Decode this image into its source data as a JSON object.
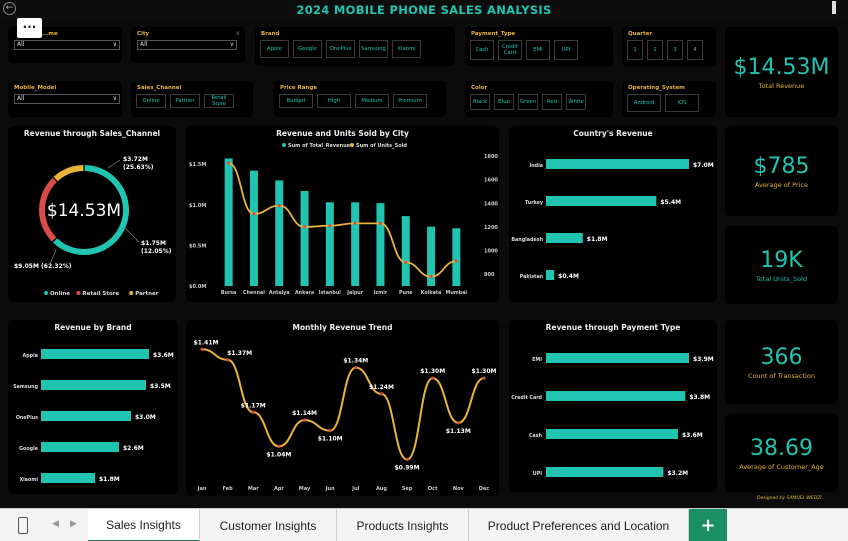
{
  "header": {
    "title": "2024 MOBILE PHONE SALES ANALYSIS",
    "back_icon": "back-arrow-icon",
    "more_label": "..."
  },
  "colors": {
    "teal": "#21c4b0",
    "gold": "#e9b43a",
    "red": "#d94a4a",
    "bg": "#000000"
  },
  "slicers": {
    "name": {
      "label": "...me",
      "value": "All"
    },
    "city": {
      "label": "City",
      "value": "All"
    },
    "brand": {
      "label": "Brand",
      "options": [
        "Apple",
        "Google",
        "OnePlus",
        "Samsung",
        "Xiaomi"
      ]
    },
    "payment": {
      "label": "Payment_Type",
      "options": [
        "Cash",
        "Credit Card",
        "EMI",
        "UPI"
      ]
    },
    "quarter": {
      "label": "Quarter",
      "options": [
        "1",
        "2",
        "3",
        "4"
      ]
    },
    "model": {
      "label": "Mobile_Model",
      "value": "All"
    },
    "channel": {
      "label": "Sales_Channel",
      "options": [
        "Online",
        "Partner",
        "Retail Store"
      ]
    },
    "price": {
      "label": "Price Range",
      "options": [
        "Budget",
        "High",
        "Medium",
        "Premium"
      ]
    },
    "color": {
      "label": "Color",
      "options": [
        "Black",
        "Blue",
        "Green",
        "Red",
        "White"
      ]
    },
    "os": {
      "label": "Operating_System",
      "options": [
        "Android",
        "iOS"
      ]
    }
  },
  "kpis": {
    "total_revenue": {
      "value": "$14.53M",
      "label": "Total Revenue"
    },
    "avg_price": {
      "value": "$785",
      "label": "Average of Price"
    },
    "units": {
      "value": "19K",
      "label": "Total Units_Sold"
    },
    "transactions": {
      "value": "366",
      "label": "Count of Transaction"
    },
    "age": {
      "value": "38.69",
      "label": "Average of Customer_Age"
    }
  },
  "panels": {
    "channel": {
      "title": "Revenue through Sales_Channel",
      "center": "$14.53M"
    },
    "city": {
      "title": "Revenue and Units Sold by City"
    },
    "country": {
      "title": "Country's Revenue"
    },
    "brand": {
      "title": "Revenue by Brand"
    },
    "monthly": {
      "title": "Monthly Revenue Trend"
    },
    "payment": {
      "title": "Revenue through Payment Type"
    }
  },
  "credit": "Designed by SAMUEL WEDZI",
  "tabs": [
    {
      "label": "Sales Insights",
      "active": true
    },
    {
      "label": "Customer Insights"
    },
    {
      "label": "Products Insights"
    },
    {
      "label": "Product Preferences and Location"
    }
  ],
  "add_tab_label": "+",
  "chart_data": [
    {
      "type": "pie",
      "title": "Revenue through Sales_Channel",
      "categories": [
        "Online",
        "Retail Store",
        "Partner"
      ],
      "values": [
        9.05,
        3.72,
        1.75
      ],
      "data_labels": [
        "$9.05M (62.32%)",
        "$3.72M (25.63%)",
        "$1.75M (12.05%)"
      ],
      "colors": [
        "#21c4b0",
        "#d94a4a",
        "#e9b43a"
      ],
      "legend": "bottom",
      "donut": true
    },
    {
      "type": "bar",
      "title": "Revenue and Units Sold by City",
      "legend_entries": [
        "Sum of Total_Revenue",
        "Sum of Units_Sold"
      ],
      "categories": [
        "Bursa",
        "Chennai",
        "Antalya",
        "Ankara",
        "Istanbul",
        "Jaipur",
        "Izmir",
        "Pune",
        "Kolkata",
        "Mumbai"
      ],
      "series": [
        {
          "name": "Sum of Total_Revenue",
          "type": "bar",
          "values": [
            1.57,
            1.42,
            1.3,
            1.17,
            1.03,
            1.03,
            1.02,
            0.86,
            0.73,
            0.71
          ]
        },
        {
          "name": "Sum of Units_Sold",
          "type": "line",
          "values": [
            1740,
            1310,
            1380,
            1200,
            1210,
            1230,
            1230,
            900,
            780,
            910
          ]
        }
      ],
      "y_ticks": [
        "$0.0M",
        "$0.5M",
        "$1.0M",
        "$1.5M"
      ],
      "ylim": [
        0,
        1.6
      ],
      "y2_ticks": [
        "800",
        "1000",
        "1200",
        "1400",
        "1600",
        "1800"
      ],
      "y2lim": [
        700,
        1800
      ]
    },
    {
      "type": "bar",
      "orientation": "horizontal",
      "title": "Country's Revenue",
      "categories": [
        "India",
        "Turkey",
        "Bangladesh",
        "Pakistan"
      ],
      "values": [
        7.0,
        5.4,
        1.8,
        0.4
      ],
      "data_labels": [
        "$7.0M",
        "$5.4M",
        "$1.8M",
        "$0.4M"
      ]
    },
    {
      "type": "bar",
      "orientation": "horizontal",
      "title": "Revenue by Brand",
      "categories": [
        "Apple",
        "Samsung",
        "OnePlus",
        "Google",
        "Xiaomi"
      ],
      "values": [
        3.6,
        3.5,
        3.0,
        2.6,
        1.8
      ],
      "data_labels": [
        "$3.6M",
        "$3.5M",
        "$3.0M",
        "$2.6M",
        "$1.8M"
      ]
    },
    {
      "type": "line",
      "title": "Monthly Revenue Trend",
      "categories": [
        "Jan",
        "Feb",
        "Mar",
        "Apr",
        "May",
        "Jun",
        "Jul",
        "Aug",
        "Sep",
        "Oct",
        "Nov",
        "Dec"
      ],
      "values": [
        1.41,
        1.37,
        1.17,
        1.04,
        1.14,
        1.1,
        1.34,
        1.24,
        0.99,
        1.3,
        1.13,
        1.3
      ],
      "data_labels": [
        "$1.41M",
        "$1.37M",
        "$1.17M",
        "$1.04M",
        "$1.14M",
        "$1.10M",
        "$1.34M",
        "$1.24M",
        "$0.99M",
        "$1.30M",
        "$1.13M",
        "$1.30M"
      ]
    },
    {
      "type": "bar",
      "orientation": "horizontal",
      "title": "Revenue through Payment Type",
      "categories": [
        "EMI",
        "Credit Card",
        "Cash",
        "UPI"
      ],
      "values": [
        3.9,
        3.8,
        3.6,
        3.2
      ],
      "data_labels": [
        "$3.9M",
        "$3.8M",
        "$3.6M",
        "$3.2M"
      ]
    }
  ]
}
